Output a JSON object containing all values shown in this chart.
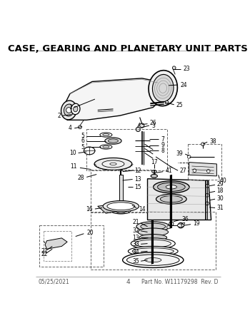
{
  "title": "CASE, GEARING AND PLANETARY UNIT PARTS",
  "title_fontsize": 9.5,
  "title_fontweight": "bold",
  "footer_left": "05/25/2021",
  "footer_center": "4",
  "footer_right": "Part No. W11179298  Rev. D",
  "footer_fontsize": 5.5,
  "bg_color": "#ffffff",
  "line_color": "#000000",
  "dashed_color": "#444444",
  "label_fontsize": 5.5,
  "fig_width": 3.5,
  "fig_height": 4.53,
  "dpi": 100
}
